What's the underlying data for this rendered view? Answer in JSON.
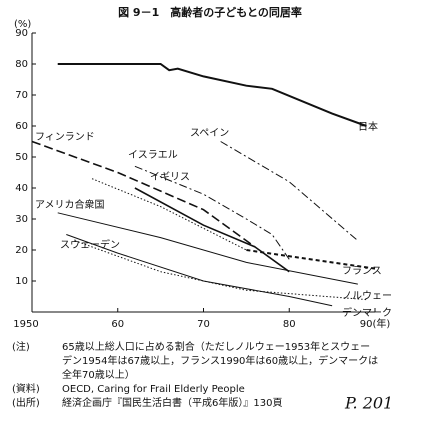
{
  "chart_data": {
    "type": "line",
    "title": "図 9－1　高齢者の子どもとの同居率",
    "y_label": "(%)",
    "xlim": [
      1950,
      1990
    ],
    "xticks": [
      1950,
      {
        "value": 1960,
        "label": "60"
      },
      {
        "value": 1970,
        "label": "70"
      },
      {
        "value": 1980,
        "label": "80"
      },
      {
        "value": 1990,
        "label": "90(年)"
      }
    ],
    "ylim": [
      0,
      90
    ],
    "yticks": [
      0,
      10,
      20,
      30,
      40,
      50,
      60,
      70,
      80,
      90
    ],
    "series": [
      {
        "name": "日本",
        "color": "#111111",
        "dash": "solid",
        "width": 2,
        "x": [
          1953,
          1960,
          1965,
          1966,
          1967,
          1970,
          1975,
          1978,
          1985,
          1989
        ],
        "values": [
          80,
          80,
          80,
          78,
          78.5,
          76,
          73,
          72,
          64,
          60
        ]
      },
      {
        "name": "フィンランド",
        "color": "#111111",
        "dash": "dashed",
        "width": 1.6,
        "x": [
          1950,
          1960,
          1970,
          1976
        ],
        "values": [
          55,
          45,
          33,
          21
        ]
      },
      {
        "name": "スペイン",
        "color": "#111111",
        "dash": "dashdot",
        "width": 1,
        "x": [
          1972,
          1980,
          1988
        ],
        "values": [
          55,
          42,
          23
        ]
      },
      {
        "name": "イスラエル",
        "color": "#111111",
        "dash": "dashdot",
        "width": 1,
        "x": [
          1962,
          1970,
          1975,
          1978,
          1980
        ],
        "values": [
          47,
          38,
          30,
          25,
          17
        ]
      },
      {
        "name": "イギリス",
        "color": "#111111",
        "dash": "solid",
        "width": 1.6,
        "x": [
          1962,
          1970,
          1976,
          1980
        ],
        "values": [
          40,
          28,
          21,
          13
        ]
      },
      {
        "name": "アメリカ合衆国",
        "color": "#111111",
        "dash": "dotted",
        "width": 1,
        "x": [
          1957,
          1965,
          1975
        ],
        "values": [
          43,
          34,
          20
        ]
      },
      {
        "name": "スウェーデン",
        "color": "#111111",
        "dash": "solid",
        "width": 1,
        "x": [
          1954,
          1960,
          1970,
          1980,
          1985
        ],
        "values": [
          25,
          19,
          10,
          5,
          2
        ]
      },
      {
        "name": "フランス",
        "color": "#111111",
        "dash": "shortdash",
        "width": 2,
        "x": [
          1975,
          1990
        ],
        "values": [
          20,
          14
        ]
      },
      {
        "name": "ノルウェー",
        "color": "#111111",
        "dash": "solid",
        "width": 1,
        "x": [
          1953,
          1965,
          1975,
          1988
        ],
        "values": [
          32,
          24,
          16,
          9
        ]
      },
      {
        "name": "デンマーク",
        "color": "#111111",
        "dash": "dotted",
        "width": 1,
        "x": [
          1955,
          1965,
          1975,
          1989
        ],
        "values": [
          23,
          13,
          7,
          4
        ]
      }
    ],
    "notes": [
      {
        "label": "(注)",
        "lines": [
          "65歳以上総人口に占める割合（ただしノルウェー1953年とスウェー",
          "デン1954年は67歳以上，フランス1990年は60歳以上，デンマークは",
          "全年70歳以上）"
        ]
      },
      {
        "label": "(資料)",
        "lines": [
          "OECD, Caring for Frail Elderly People"
        ]
      },
      {
        "label": "(出所)",
        "lines": [
          "経済企画庁『国民生活白書（平成6年版）』130頁"
        ]
      }
    ],
    "handwritten": "P. 201"
  }
}
